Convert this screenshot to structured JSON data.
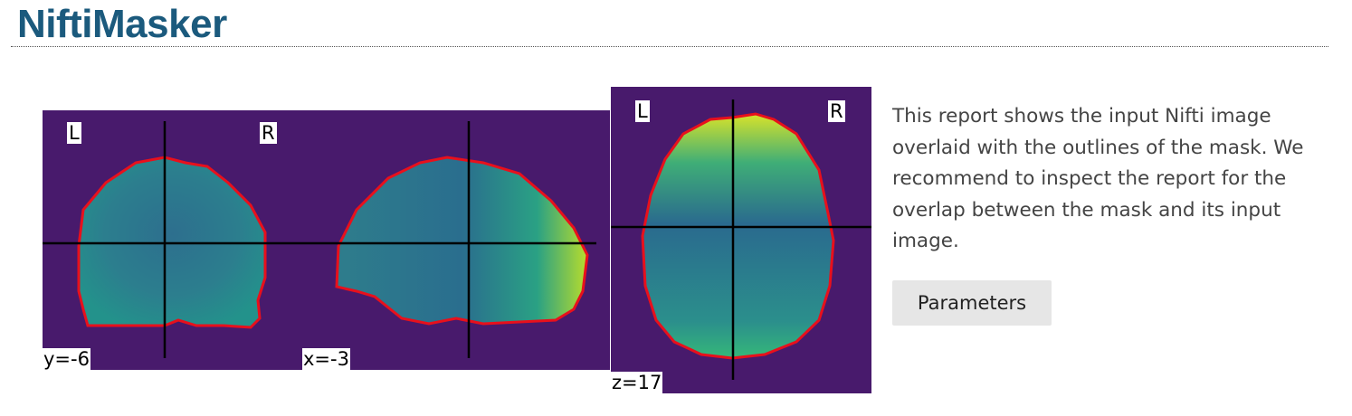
{
  "header": {
    "title": "NiftiMasker"
  },
  "panels": {
    "coronal": {
      "coord_label": "y=-6",
      "left_label": "L",
      "right_label": "R"
    },
    "sagittal": {
      "coord_label": "x=-3"
    },
    "axial": {
      "coord_label": "z=17",
      "left_label": "L",
      "right_label": "R"
    }
  },
  "description": "This report shows the input Nifti image overlaid with the outlines of the mask. We recommend to inspect the report for the overlap between the mask and its input image.",
  "buttons": {
    "parameters_label": "Parameters"
  },
  "colors": {
    "background": "#481a6c",
    "mask_outline": "#e8101c",
    "crosshair": "#000000",
    "title": "#1b5a7d"
  }
}
